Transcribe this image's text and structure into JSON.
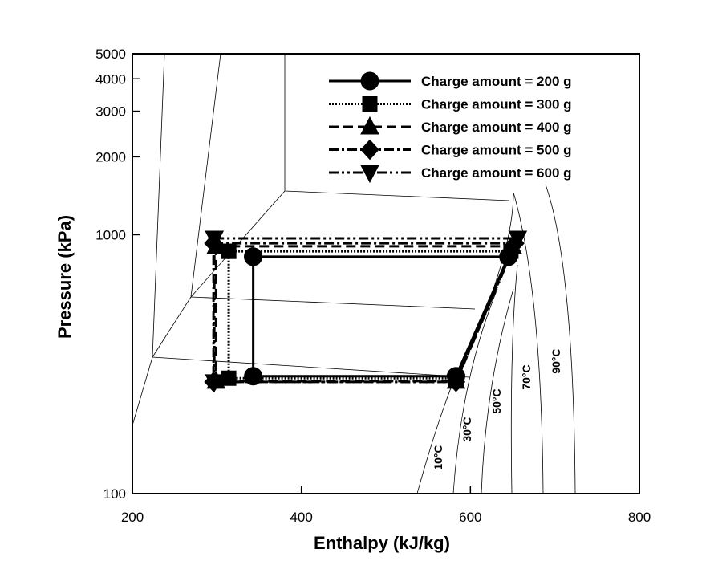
{
  "chart_data": {
    "type": "line",
    "x_label": "Enthalpy (kJ/kg)",
    "y_label": "Pressure (kPa)",
    "xlim": [
      200,
      800
    ],
    "xticks": [
      200,
      400,
      600,
      800
    ],
    "ylim": [
      100,
      5000
    ],
    "yticks": [
      100,
      1000,
      2000,
      3000,
      4000,
      5000
    ],
    "y_scale": "log",
    "legend_position": "upper right",
    "series": [
      {
        "name": "Charge amount = 200 g",
        "color": "#000000",
        "marker": "circle",
        "line_style": "solid",
        "x": [
          343,
          645,
          583,
          343,
          343
        ],
        "values": [
          822,
          822,
          284,
          284,
          822
        ]
      },
      {
        "name": "Charge amount = 300 g",
        "color": "#000000",
        "marker": "square",
        "line_style": "dotted",
        "x": [
          314,
          648,
          583,
          314,
          314
        ],
        "values": [
          863,
          863,
          279,
          279,
          863
        ]
      },
      {
        "name": "Charge amount = 400 g",
        "color": "#000000",
        "marker": "triangle",
        "line_style": "dashed",
        "x": [
          299,
          650,
          583,
          299,
          299
        ],
        "values": [
          902,
          902,
          272,
          272,
          902
        ]
      },
      {
        "name": "Charge amount = 500 g",
        "color": "#000000",
        "marker": "diamond",
        "line_style": "dashdot",
        "x": [
          296,
          653,
          583,
          296,
          296
        ],
        "values": [
          927,
          927,
          270,
          270,
          927
        ]
      },
      {
        "name": "Charge amount = 600 g",
        "color": "#000000",
        "marker": "triangle-down",
        "line_style": "dashdotdot",
        "x": [
          297,
          656,
          583,
          297,
          297
        ],
        "values": [
          968,
          968,
          270,
          270,
          968
        ]
      }
    ],
    "annotations": [
      {
        "text": "10°C"
      },
      {
        "text": "30°C"
      },
      {
        "text": "50°C"
      },
      {
        "text": "70°C"
      },
      {
        "text": "90°C"
      }
    ]
  }
}
